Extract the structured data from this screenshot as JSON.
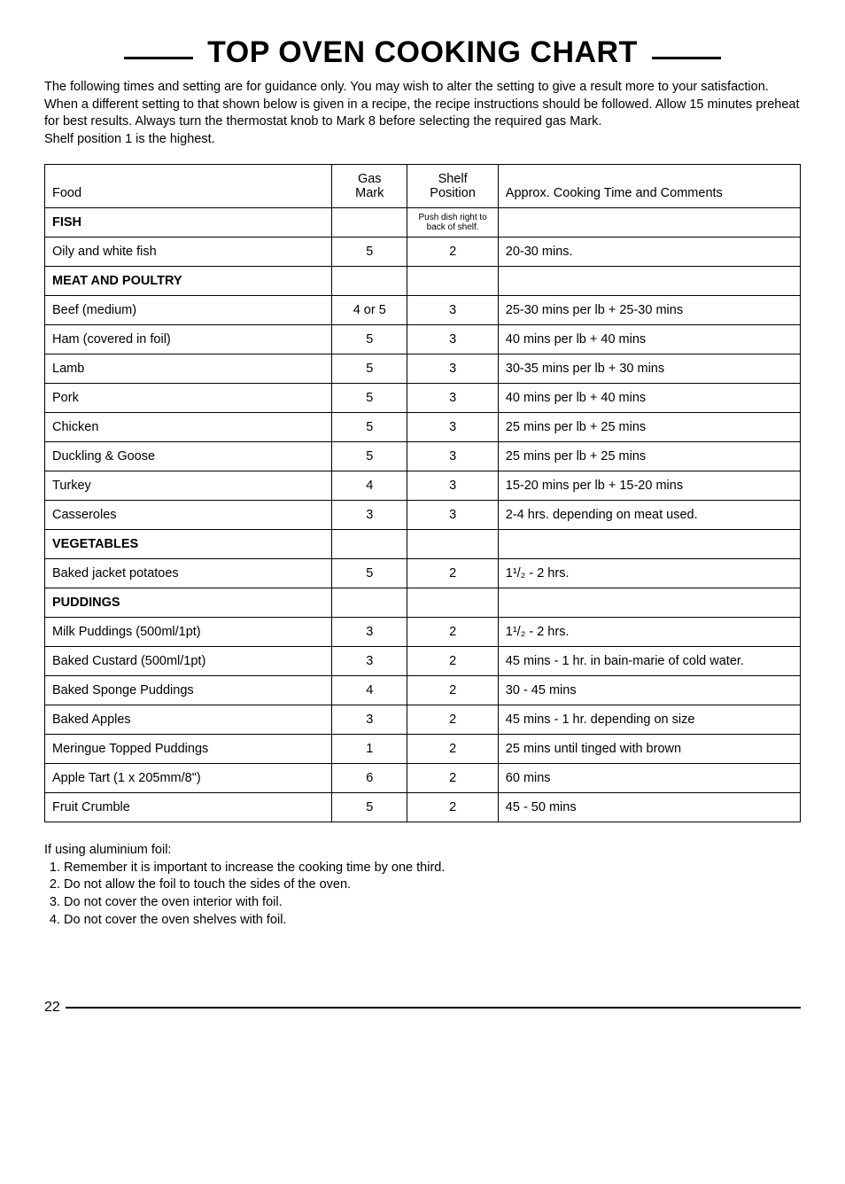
{
  "title": "TOP OVEN COOKING CHART",
  "intro": "The following times and setting are for guidance only. You may wish to alter the setting to give a result more to your satisfaction. When a different setting to that shown below is given in a recipe, the recipe instructions should be followed. Allow 15 minutes preheat for best results. Always turn the thermostat knob to Mark 8 before selecting the required gas Mark.\nShelf position 1 is the highest.",
  "headers": {
    "food": "Food",
    "gas": "Gas\nMark",
    "shelf": "Shelf\nPosition",
    "comments": "Approx. Cooking Time and Comments"
  },
  "push_note": "Push dish right to\nback of shelf.",
  "sections": [
    {
      "label": "FISH",
      "rows": [
        {
          "food": "Oily and white fish",
          "gas": "5",
          "shelf": "2",
          "comments": "20-30 mins."
        }
      ]
    },
    {
      "label": "MEAT AND POULTRY",
      "rows": [
        {
          "food": "Beef (medium)",
          "gas": "4 or 5",
          "shelf": "3",
          "comments": "25-30 mins per lb + 25-30 mins"
        },
        {
          "food": "Ham (covered in foil)",
          "gas": "5",
          "shelf": "3",
          "comments": "40 mins per lb + 40 mins"
        },
        {
          "food": "Lamb",
          "gas": "5",
          "shelf": "3",
          "comments": "30-35 mins per lb + 30 mins"
        },
        {
          "food": "Pork",
          "gas": "5",
          "shelf": "3",
          "comments": "40 mins per lb + 40 mins"
        },
        {
          "food": "Chicken",
          "gas": "5",
          "shelf": "3",
          "comments": "25 mins per lb + 25 mins"
        },
        {
          "food": "Duckling & Goose",
          "gas": "5",
          "shelf": "3",
          "comments": "25 mins per lb + 25 mins"
        },
        {
          "food": "Turkey",
          "gas": "4",
          "shelf": "3",
          "comments": "15-20 mins per lb + 15-20 mins"
        },
        {
          "food": "Casseroles",
          "gas": "3",
          "shelf": "3",
          "comments": "2-4 hrs. depending on meat used."
        }
      ]
    },
    {
      "label": "VEGETABLES",
      "rows": [
        {
          "food": "Baked jacket potatoes",
          "gas": "5",
          "shelf": "2",
          "comments": "1¹/₂ - 2 hrs."
        }
      ]
    },
    {
      "label": "PUDDINGS",
      "rows": [
        {
          "food": "Milk Puddings (500ml/1pt)",
          "gas": "3",
          "shelf": "2",
          "comments": "1¹/₂ - 2 hrs."
        },
        {
          "food": "Baked Custard (500ml/1pt)",
          "gas": "3",
          "shelf": "2",
          "comments": "45 mins - 1 hr. in bain-marie of cold water."
        },
        {
          "food": "Baked Sponge Puddings",
          "gas": "4",
          "shelf": "2",
          "comments": "30 - 45 mins"
        },
        {
          "food": "Baked Apples",
          "gas": "3",
          "shelf": "2",
          "comments": "45 mins - 1 hr. depending on size"
        },
        {
          "food": "Meringue Topped Puddings",
          "gas": "1",
          "shelf": "2",
          "comments": "25 mins until tinged with brown"
        },
        {
          "food": "Apple Tart (1 x 205mm/8\")",
          "gas": "6",
          "shelf": "2",
          "comments": "60 mins"
        },
        {
          "food": "Fruit Crumble",
          "gas": "5",
          "shelf": "2",
          "comments": "45 - 50 mins"
        }
      ]
    }
  ],
  "notes_intro": "If using aluminium foil:",
  "notes": [
    "Remember it is important to increase the cooking time by one third.",
    "Do not allow the foil to touch the sides of the oven.",
    "Do not cover the oven interior with foil.",
    "Do not cover the oven shelves with foil."
  ],
  "page_number": "22"
}
